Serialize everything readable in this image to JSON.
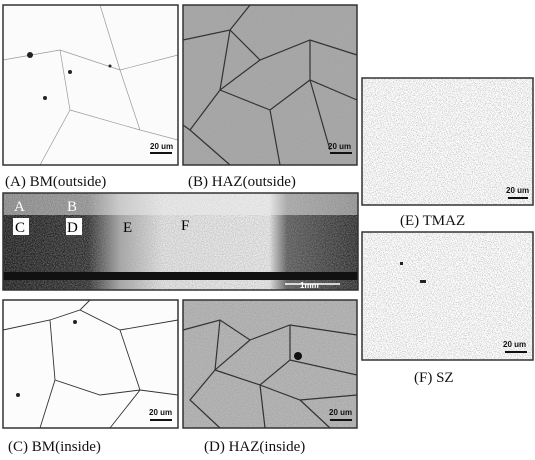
{
  "panels": [
    {
      "caption": "(A) BM(outside)",
      "scale_bar": "20 um"
    },
    {
      "caption": "(B) HAZ(outside)",
      "scale_bar": "20 um"
    },
    {
      "caption": "(C) BM(inside)",
      "scale_bar": "20 um"
    },
    {
      "caption": "(D) HAZ(inside)",
      "scale_bar": "20 um"
    },
    {
      "caption": "(E) TMAZ",
      "scale_bar": "20 um"
    },
    {
      "caption": "(F) SZ",
      "scale_bar": "20 um"
    }
  ],
  "macrograph": {
    "labels": [
      "A",
      "B",
      "C",
      "D",
      "E",
      "F"
    ],
    "scale_bar": "1mm"
  }
}
